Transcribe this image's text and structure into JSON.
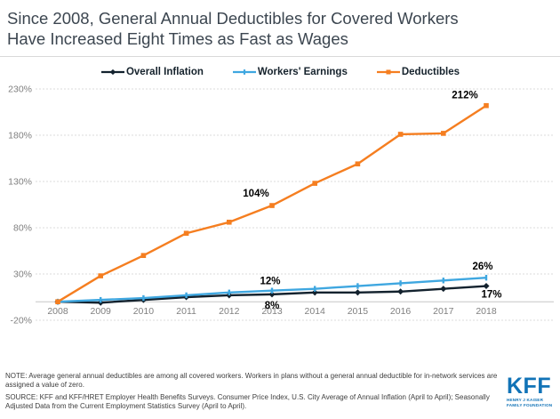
{
  "title": {
    "line1": "Since 2008, General Annual Deductibles for Covered Workers",
    "line2": "Have Increased Eight Times as Fast as Wages",
    "full": "Since 2008, General Annual Deductibles for Covered Workers Have Increased Eight Times as Fast as Wages"
  },
  "chart_data": {
    "type": "line",
    "x": [
      "2008",
      "2009",
      "2010",
      "2011",
      "2012",
      "2013",
      "2014",
      "2015",
      "2016",
      "2017",
      "2018"
    ],
    "series": [
      {
        "name": "Overall Inflation",
        "color": "#13222e",
        "marker": "diamond",
        "values": [
          0,
          -1,
          2,
          5,
          7,
          8,
          10,
          10,
          11,
          14,
          17
        ]
      },
      {
        "name": "Workers' Earnings",
        "color": "#3fa7e0",
        "marker": "tick",
        "values": [
          0,
          2,
          4,
          7,
          10,
          12,
          14,
          17,
          20,
          23,
          26
        ]
      },
      {
        "name": "Deductibles",
        "color": "#f57e20",
        "marker": "square",
        "values": [
          0,
          28,
          50,
          74,
          86,
          104,
          128,
          149,
          181,
          182,
          212
        ]
      }
    ],
    "yticks": [
      230,
      180,
      130,
      80,
      30,
      -20
    ],
    "ytick_labels": [
      "230%",
      "180%",
      "130%",
      "80%",
      "30%",
      "-20%"
    ],
    "ylim": [
      -20,
      230
    ],
    "zero_baseline": true,
    "grid": "dashed-horizontal",
    "legend_position": "top-center",
    "annotations": [
      {
        "series": "Deductibles",
        "year": "2013",
        "text": "104%"
      },
      {
        "series": "Deductibles",
        "year": "2018",
        "text": "212%"
      },
      {
        "series": "Workers' Earnings",
        "year": "2013",
        "text": "12%"
      },
      {
        "series": "Overall Inflation",
        "year": "2013",
        "text": "8%"
      },
      {
        "series": "Workers' Earnings",
        "year": "2018",
        "text": "26%"
      },
      {
        "series": "Overall Inflation",
        "year": "2018",
        "text": "17%"
      }
    ],
    "label_color": "#000000",
    "axis_label_color": "#7f7f7f",
    "gridline_color": "#dbdbdb"
  },
  "footer": {
    "note": "NOTE: Average general annual deductibles are among all covered workers. Workers in plans without a general annual deductible for in-network services are assigned a value of zero.",
    "source": "SOURCE: KFF and KFF/HRET Employer Health Benefits Surveys. Consumer Price Index, U.S. City Average of Annual Inflation (April to April); Seasonally Adjusted Data from the Current Employment Statistics Survey (April to April).",
    "logo": {
      "text": "KFF",
      "subtext_line1": "HENRY J KAISER",
      "subtext_line2": "FAMILY FOUNDATION",
      "color": "#1173b7"
    }
  }
}
